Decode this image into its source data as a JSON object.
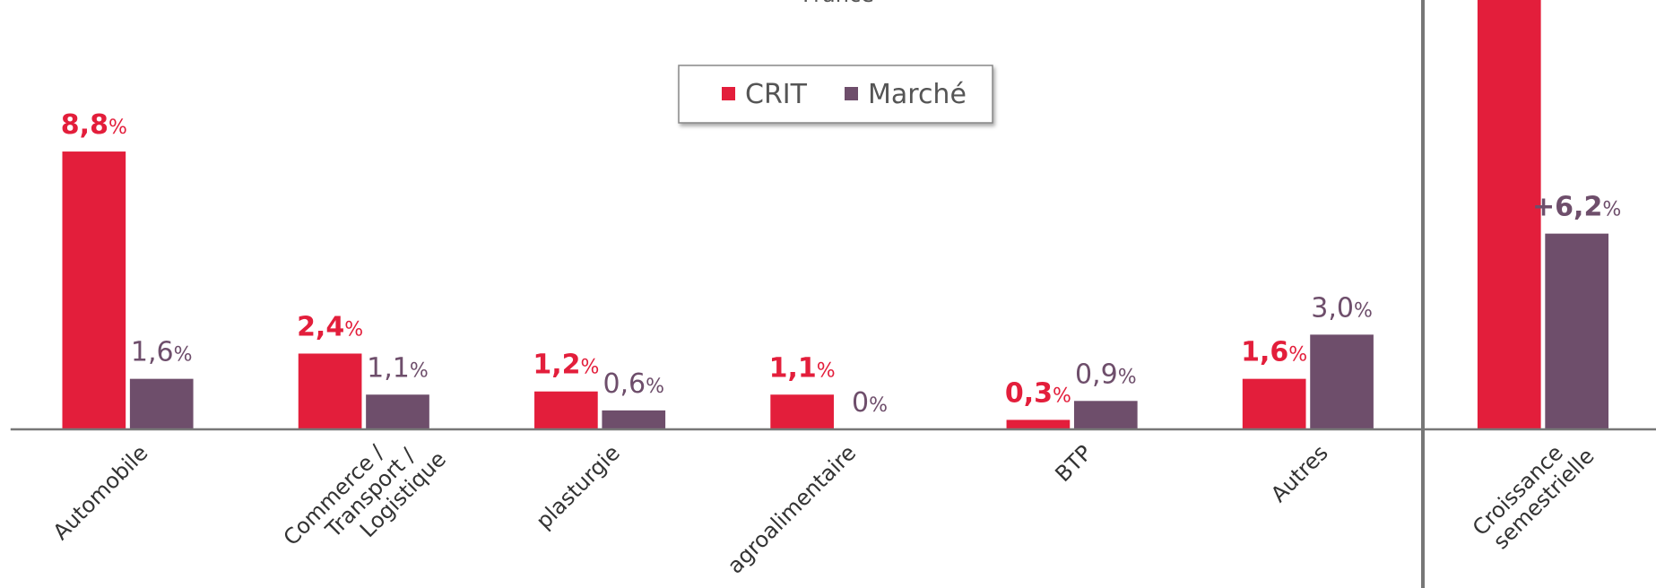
{
  "chart_data": {
    "type": "bar",
    "title": "France",
    "categories": [
      "Automobile",
      "Commerce /\nTransport /\nLogistique",
      "plasturgie",
      "agroalimentaire",
      "BTP",
      "Autres",
      "Croissance\nsemestrielle"
    ],
    "series": [
      {
        "name": "CRIT",
        "color": "#e31e3b",
        "values": [
          8.8,
          2.4,
          1.2,
          1.1,
          0.3,
          1.6,
          14
        ],
        "value_labels": [
          "8,8%",
          "2,4%",
          "1,2%",
          "1,1%",
          "0,3%",
          "1,6%",
          null
        ]
      },
      {
        "name": "Marché",
        "color": "#6e4e6b",
        "values": [
          1.6,
          1.1,
          0.6,
          0,
          0.9,
          3.0,
          6.2
        ],
        "value_labels": [
          "1,6%",
          "1,1%",
          "0,6%",
          "0%",
          "0,9%",
          "3,0%",
          "+6,2%"
        ]
      }
    ],
    "ylim": [
      0,
      13.6
    ]
  }
}
